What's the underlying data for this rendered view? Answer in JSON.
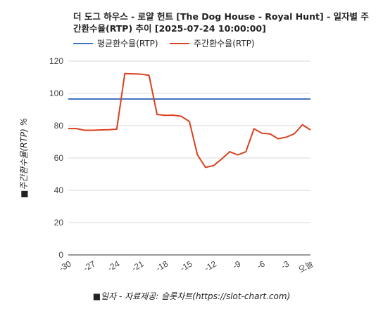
{
  "chart_data": {
    "type": "line",
    "title": "더 도그 하우스 - 로얄 헌트 [The Dog House - Royal Hunt] - 일자별 주간환수율(RTP) 추이 [2025-07-24 10:00:00]",
    "xlabel": "■일자 - 자료제공: 슬롯차트(https://slot-chart.com)",
    "ylabel": "■주간환수율(RTP) %",
    "ylim": [
      0,
      120
    ],
    "yticks": [
      0,
      20,
      40,
      60,
      80,
      100,
      120
    ],
    "xlim": [
      -30,
      0
    ],
    "xticks": [
      {
        "value": -30,
        "label": "-30"
      },
      {
        "value": -27,
        "label": "-27"
      },
      {
        "value": -24,
        "label": "-24"
      },
      {
        "value": -21,
        "label": "-21"
      },
      {
        "value": -18,
        "label": "-18"
      },
      {
        "value": -15,
        "label": "-15"
      },
      {
        "value": -12,
        "label": "-12"
      },
      {
        "value": -9,
        "label": "-9"
      },
      {
        "value": -6,
        "label": "-6"
      },
      {
        "value": -3,
        "label": "-3"
      },
      {
        "value": 0,
        "label": "오늘"
      }
    ],
    "legend_position": "top",
    "grid": "horizontal",
    "series": [
      {
        "name": "평균환수율(RTP)",
        "color": "#4472c4",
        "x": [
          -30,
          0
        ],
        "values": [
          96.5,
          96.5
        ]
      },
      {
        "name": "주간환수율(RTP)",
        "color": "#d9411e",
        "x": [
          -30,
          -29,
          -28,
          -27,
          -26,
          -25,
          -24,
          -23,
          -22,
          -21,
          -20,
          -19,
          -18,
          -17,
          -16,
          -15,
          -14,
          -13,
          -12,
          -11,
          -10,
          -9,
          -8,
          -7,
          -6,
          -5,
          -4,
          -3,
          -2,
          -1,
          0
        ],
        "values": [
          78.2,
          78.2,
          77.2,
          77.2,
          77.4,
          77.5,
          77.8,
          112.3,
          112.1,
          111.9,
          111.2,
          86.9,
          86.4,
          86.5,
          85.8,
          82.6,
          61.9,
          54.2,
          55.3,
          59.4,
          63.9,
          61.9,
          63.9,
          78.1,
          75.3,
          74.9,
          71.9,
          72.9,
          75.0,
          80.6,
          77.4
        ]
      }
    ]
  }
}
